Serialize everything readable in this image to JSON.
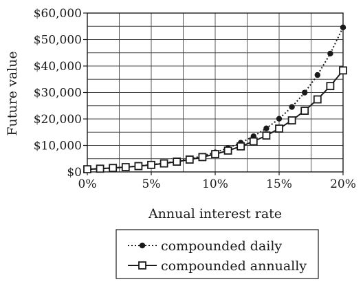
{
  "chart_data": {
    "type": "line",
    "title": "",
    "xlabel": "Annual interest rate",
    "ylabel": "Future value",
    "x": [
      0,
      1,
      2,
      3,
      4,
      5,
      6,
      7,
      8,
      9,
      10,
      11,
      12,
      13,
      14,
      15,
      16,
      17,
      18,
      19,
      20
    ],
    "x_ticks": [
      0,
      5,
      10,
      15,
      20
    ],
    "x_tick_labels": [
      "0%",
      "5%",
      "10%",
      "15%",
      "20%"
    ],
    "y_ticks": [
      0,
      10000,
      20000,
      30000,
      40000,
      50000,
      60000
    ],
    "y_tick_labels": [
      "$0",
      "$10,000",
      "$20,000",
      "$30,000",
      "$40,000",
      "$50,000",
      "$60,000"
    ],
    "xlim": [
      0,
      20
    ],
    "ylim": [
      0,
      60000
    ],
    "grid": true,
    "legend_position": "bottom",
    "series": [
      {
        "name": "compounded daily",
        "style": "dotted",
        "marker": "filled-circle",
        "color": "#1a1a1a",
        "values": [
          1000,
          1221,
          1492,
          1822,
          2225,
          2718,
          3320,
          4055,
          4953,
          6049,
          7389,
          9024,
          11023,
          13463,
          16444,
          20086,
          24533,
          29964,
          36598,
          44701,
          54598
        ]
      },
      {
        "name": "compounded annually",
        "style": "solid",
        "marker": "open-square",
        "color": "#1a1a1a",
        "values": [
          1000,
          1220,
          1486,
          1806,
          2191,
          2653,
          3207,
          3870,
          4661,
          5604,
          6727,
          8062,
          9646,
          11523,
          13743,
          16367,
          19461,
          23106,
          27393,
          32429,
          38338
        ]
      }
    ]
  }
}
